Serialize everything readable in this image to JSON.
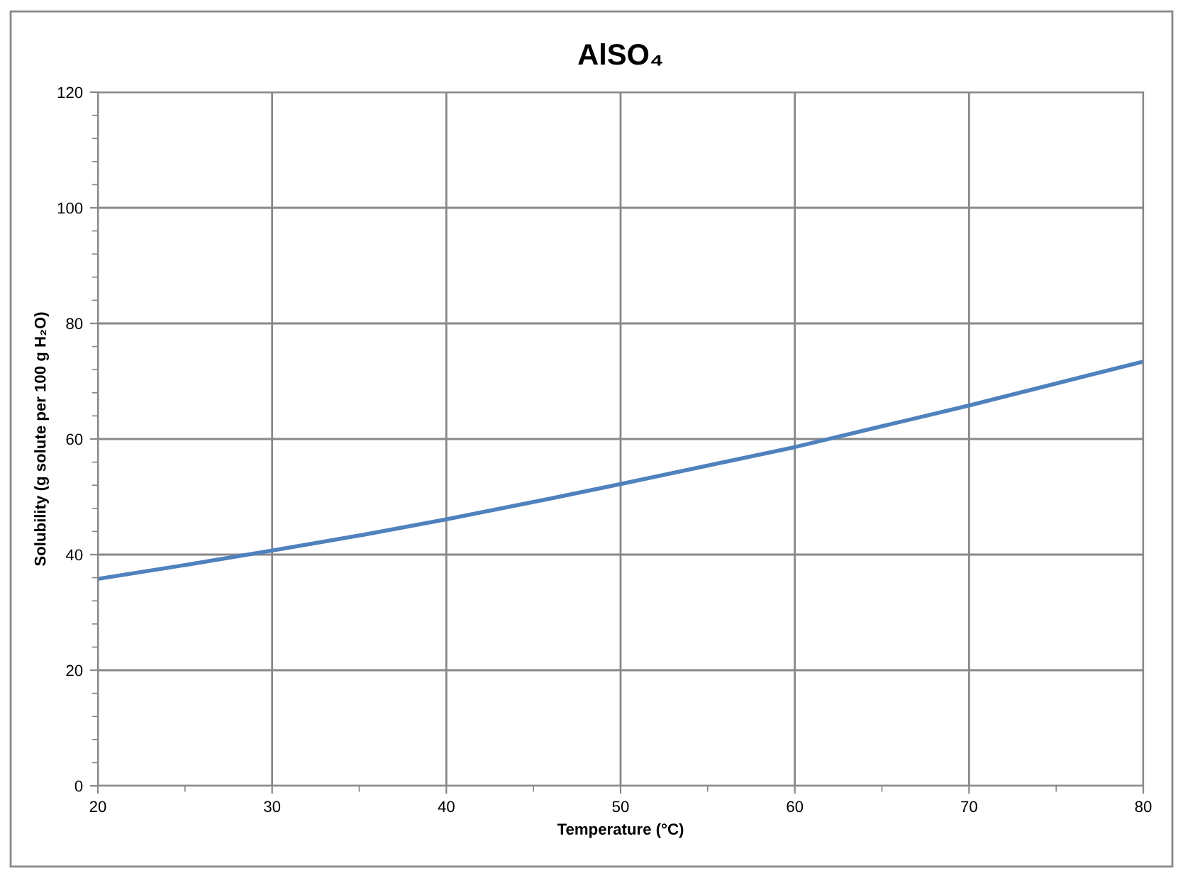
{
  "chart_data": {
    "type": "line",
    "title": "AlSO₄",
    "xlabel": "Temperature (°C)",
    "ylabel": "Solubility (g solute per 100 g H₂O)",
    "x": [
      20,
      25,
      30,
      35,
      40,
      45,
      50,
      55,
      60,
      65,
      70,
      75,
      80
    ],
    "series": [
      {
        "color": "#4f81bd",
        "values": [
          35.8,
          38.2,
          40.7,
          43.3,
          46.1,
          49.1,
          52.2,
          55.4,
          58.6,
          62.2,
          65.8,
          69.6,
          73.4
        ]
      }
    ],
    "xlim": [
      20,
      80
    ],
    "ylim": [
      0,
      120
    ],
    "xticks": [
      20,
      {
        "value": 25,
        "label": null
      },
      30,
      {
        "value": 35,
        "label": null
      },
      40,
      {
        "value": 45,
        "label": null
      },
      50,
      {
        "value": 55,
        "label": null
      },
      60,
      {
        "value": 65,
        "label": null
      },
      70,
      {
        "value": 75,
        "label": null
      },
      80
    ],
    "yticks": [
      0,
      {
        "value": 4,
        "label": null
      },
      {
        "value": 8,
        "label": null
      },
      {
        "value": 12,
        "label": null
      },
      {
        "value": 16,
        "label": null
      },
      20,
      {
        "value": 24,
        "label": null
      },
      {
        "value": 28,
        "label": null
      },
      {
        "value": 32,
        "label": null
      },
      {
        "value": 36,
        "label": null
      },
      40,
      {
        "value": 44,
        "label": null
      },
      {
        "value": 48,
        "label": null
      },
      {
        "value": 52,
        "label": null
      },
      {
        "value": 56,
        "label": null
      },
      60,
      {
        "value": 64,
        "label": null
      },
      {
        "value": 68,
        "label": null
      },
      {
        "value": 72,
        "label": null
      },
      {
        "value": 76,
        "label": null
      },
      80,
      {
        "value": 84,
        "label": null
      },
      {
        "value": 88,
        "label": null
      },
      {
        "value": 92,
        "label": null
      },
      {
        "value": 96,
        "label": null
      },
      100,
      {
        "value": 104,
        "label": null
      },
      {
        "value": 108,
        "label": null
      },
      {
        "value": 112,
        "label": null
      },
      {
        "value": 116,
        "label": null
      },
      120
    ],
    "grid": true,
    "legend": false,
    "marker": "none",
    "line_style": "solid"
  }
}
